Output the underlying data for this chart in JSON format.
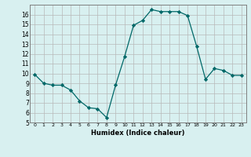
{
  "x": [
    0,
    1,
    2,
    3,
    4,
    5,
    6,
    7,
    8,
    9,
    10,
    11,
    12,
    13,
    14,
    15,
    16,
    17,
    18,
    19,
    20,
    21,
    22,
    23
  ],
  "y": [
    9.9,
    9.0,
    8.8,
    8.8,
    8.3,
    7.2,
    6.5,
    6.4,
    5.5,
    8.8,
    11.7,
    14.9,
    15.4,
    16.5,
    16.3,
    16.3,
    16.3,
    15.9,
    12.8,
    9.4,
    10.5,
    10.3,
    9.8,
    9.8
  ],
  "xlabel": "Humidex (Indice chaleur)",
  "xlim": [
    -0.5,
    23.5
  ],
  "ylim": [
    5,
    17
  ],
  "yticks": [
    5,
    6,
    7,
    8,
    9,
    10,
    11,
    12,
    13,
    14,
    15,
    16
  ],
  "xticks": [
    0,
    1,
    2,
    3,
    4,
    5,
    6,
    7,
    8,
    9,
    10,
    11,
    12,
    13,
    14,
    15,
    16,
    17,
    18,
    19,
    20,
    21,
    22,
    23
  ],
  "line_color": "#006868",
  "marker": "D",
  "marker_size": 2.2,
  "background_color": "#d8f0f0",
  "grid_color_major": "#b8b8b8",
  "grid_color_minor": "#d0c8c8"
}
